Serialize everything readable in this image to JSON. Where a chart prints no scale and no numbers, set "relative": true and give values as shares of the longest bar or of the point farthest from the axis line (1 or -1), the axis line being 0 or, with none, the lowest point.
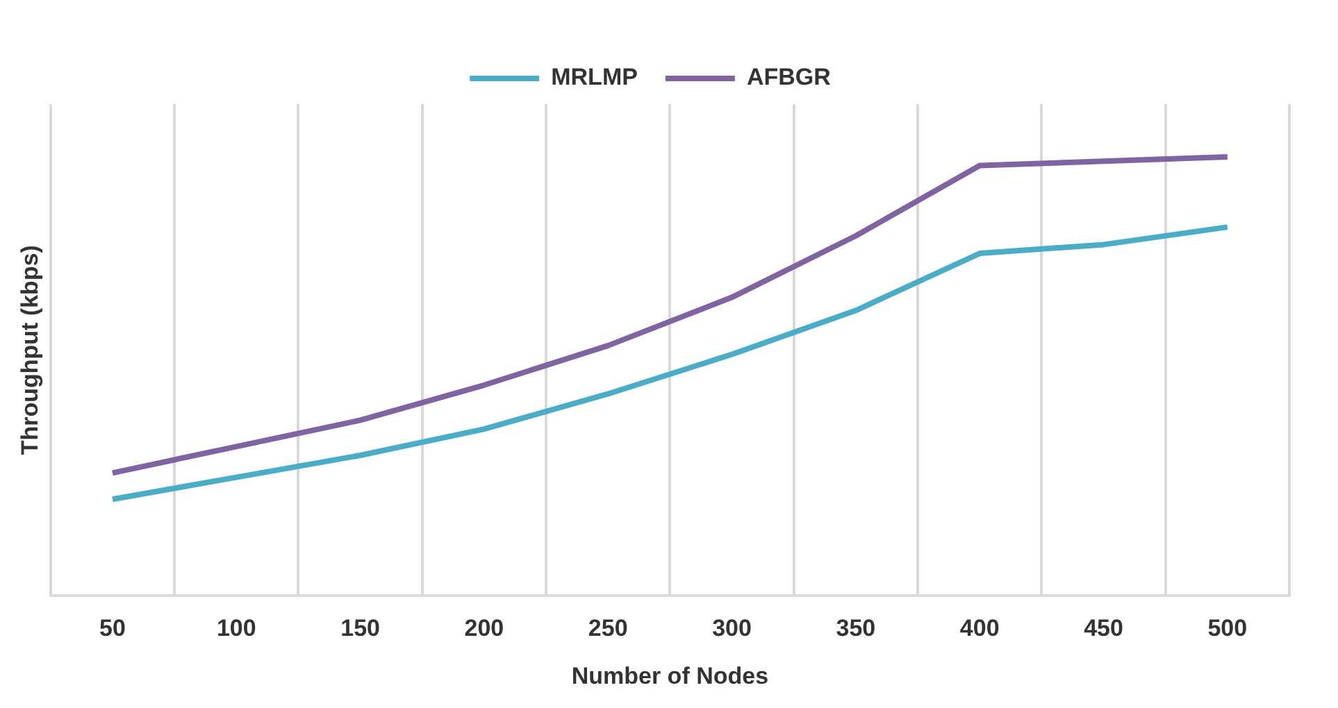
{
  "chart_data": {
    "type": "line",
    "relative": true,
    "xlabel": "Number of Nodes",
    "ylabel": "Throughput (kbps)",
    "categories": [
      "50",
      "100",
      "150",
      "200",
      "250",
      "300",
      "350",
      "400",
      "450",
      "500"
    ],
    "series": [
      {
        "name": "MRLMP",
        "color": "#4bacc6",
        "values": [
          0.22,
          0.27,
          0.32,
          0.38,
          0.46,
          0.55,
          0.65,
          0.78,
          0.8,
          0.84
        ]
      },
      {
        "name": "AFBGR",
        "color": "#8064a2",
        "values": [
          0.28,
          0.34,
          0.4,
          0.48,
          0.57,
          0.68,
          0.82,
          0.98,
          0.99,
          1
        ]
      }
    ],
    "grid": "x",
    "legend": "top",
    "marker": "none",
    "line_style": "solid"
  }
}
